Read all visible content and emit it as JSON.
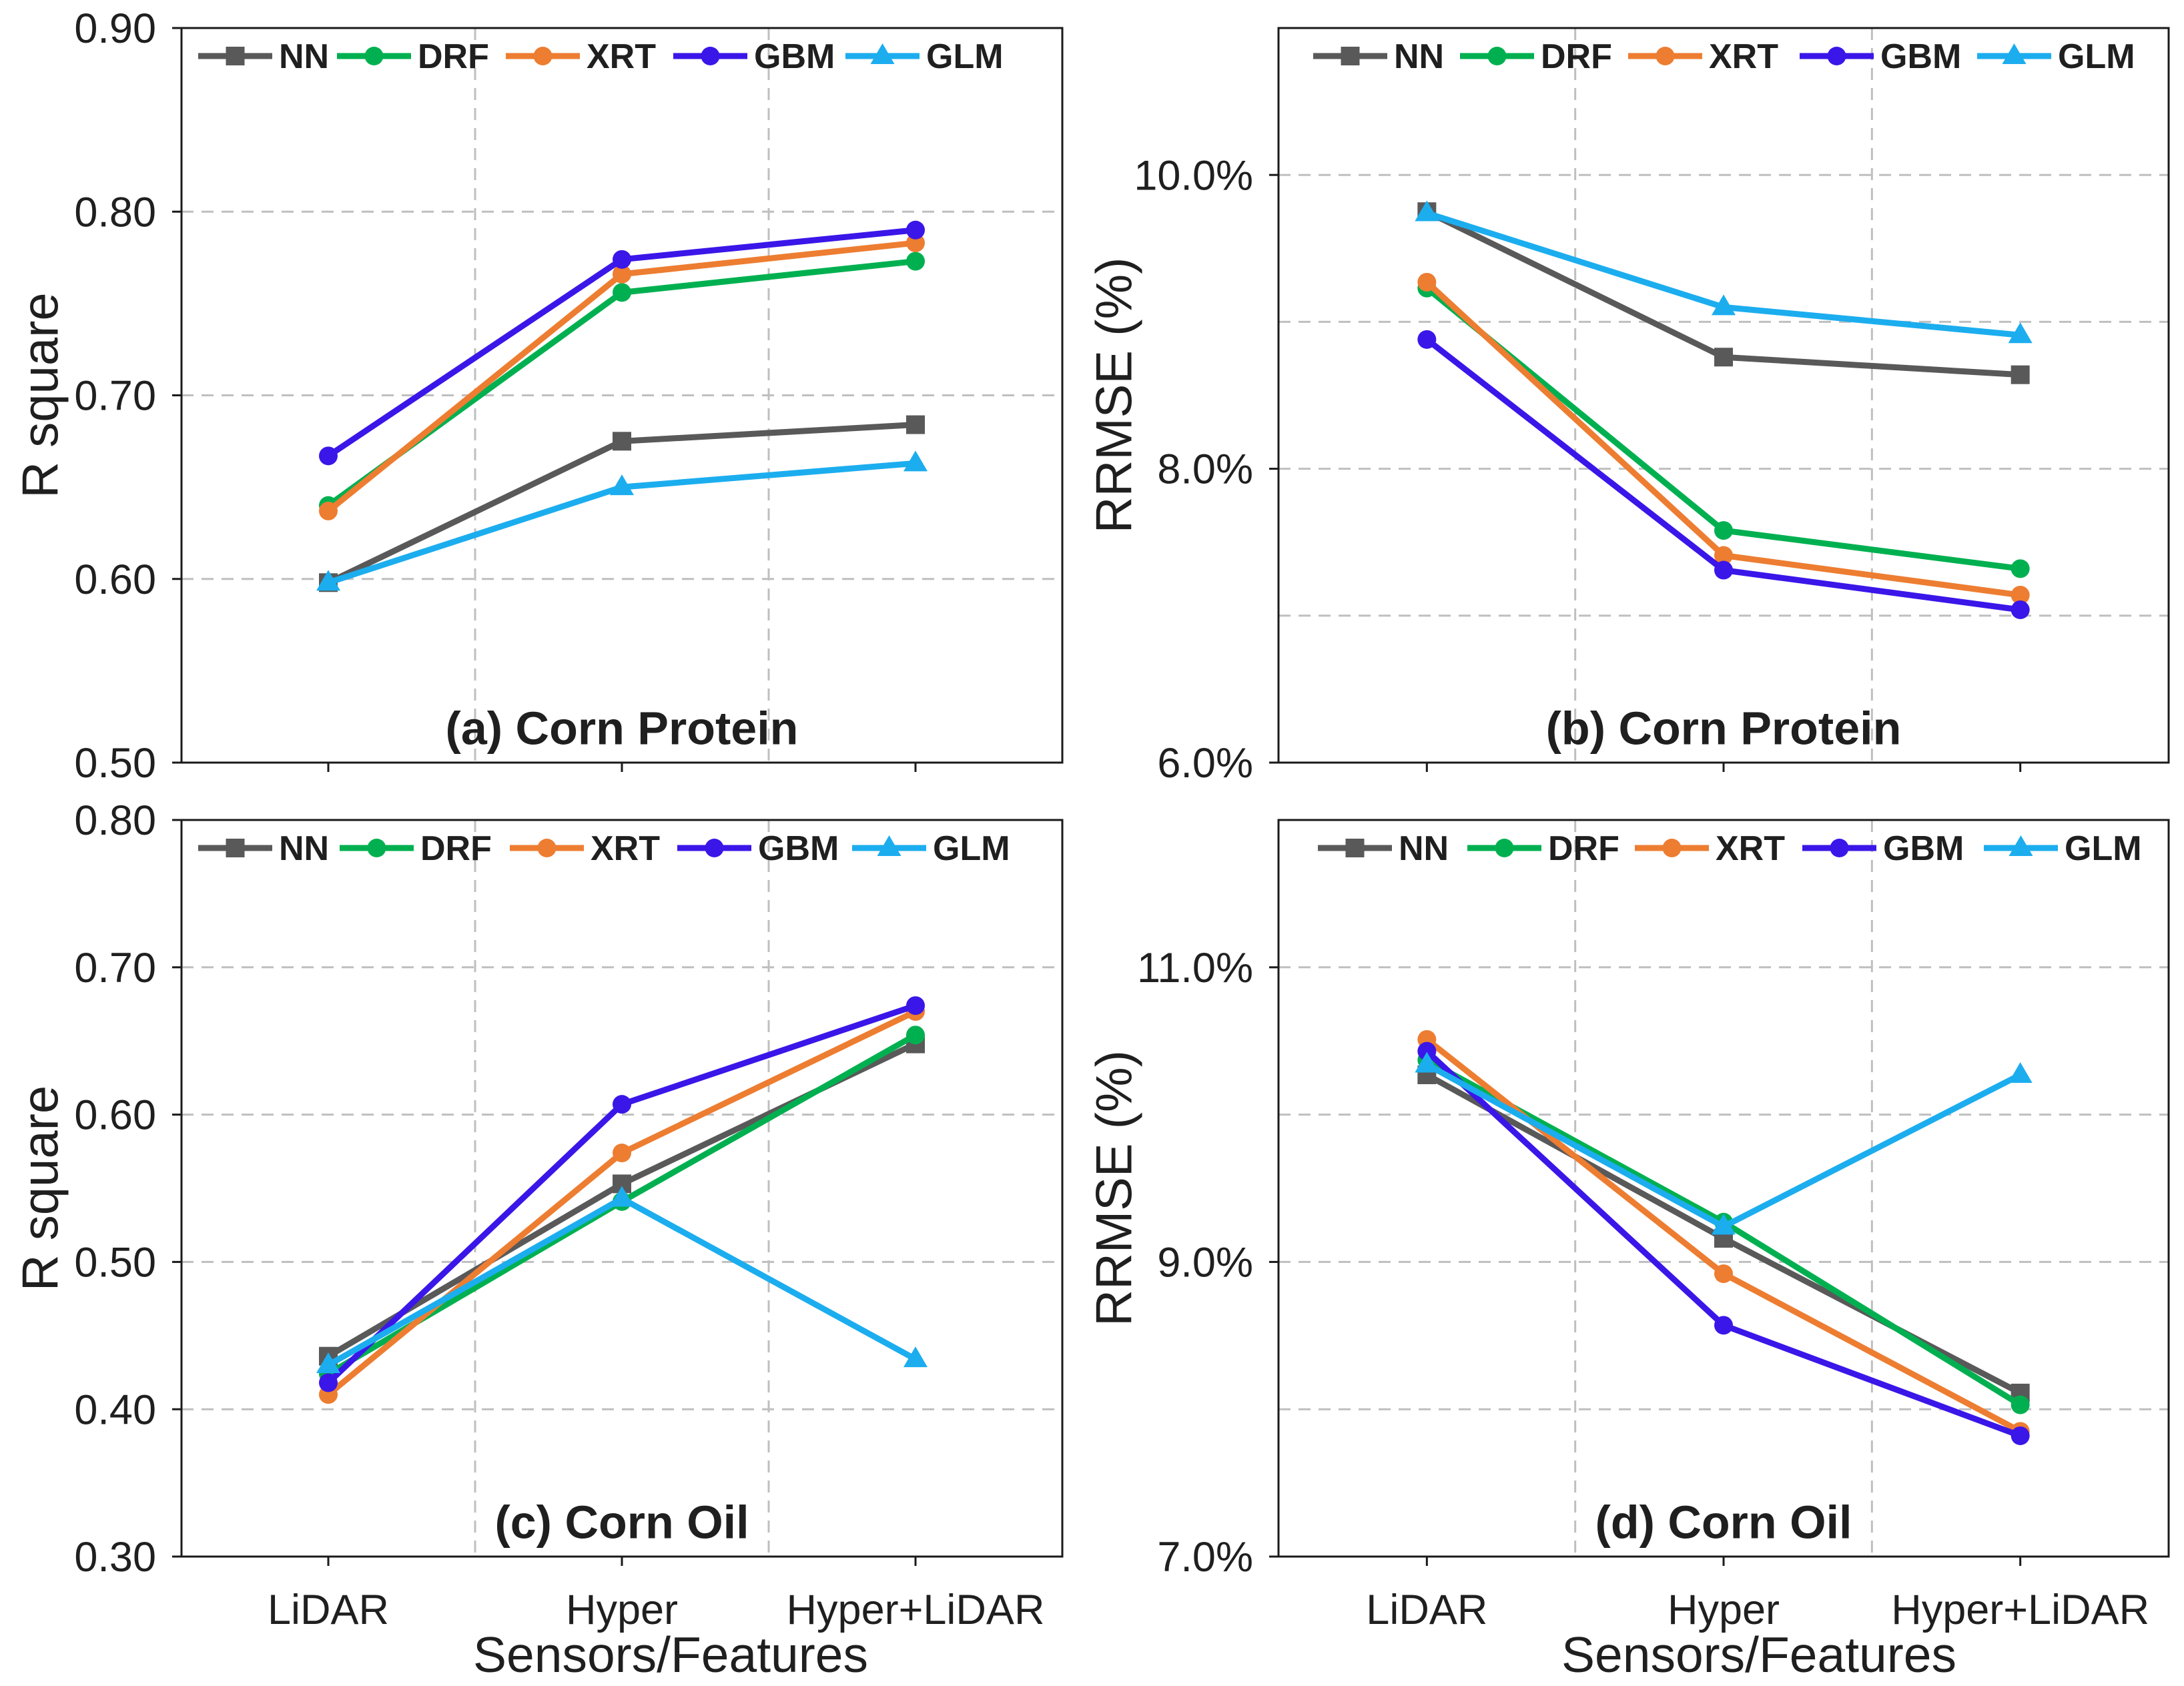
{
  "chart_data": {
    "type": "line",
    "categories": [
      "LiDAR",
      "Hyper",
      "Hyper+LiDAR"
    ],
    "xlabel": "Sensors/Features",
    "charts": [
      {
        "type": "line",
        "title": "(a) Corn Protein",
        "ylabel": "R square",
        "ylim": [
          0.5,
          0.9
        ],
        "yticks": [
          0.5,
          0.6,
          0.7,
          0.8,
          0.9
        ],
        "ytick_labels": [
          "0.50",
          "0.60",
          "0.70",
          "0.80",
          "0.90"
        ],
        "ygrid": [
          0.6,
          0.7,
          0.8
        ],
        "grid": true,
        "series": [
          {
            "name": "NN",
            "color": "#595959",
            "marker": "square",
            "values": [
              0.598,
              0.675,
              0.684
            ]
          },
          {
            "name": "DRF",
            "color": "#00B050",
            "marker": "circle",
            "values": [
              0.64,
              0.756,
              0.773
            ]
          },
          {
            "name": "XRT",
            "color": "#ED7D31",
            "marker": "circle",
            "values": [
              0.637,
              0.766,
              0.783
            ]
          },
          {
            "name": "GBM",
            "color": "#3B16E8",
            "marker": "circle",
            "values": [
              0.667,
              0.774,
              0.79
            ]
          },
          {
            "name": "GLM",
            "color": "#1CADEF",
            "marker": "triangle",
            "values": [
              0.598,
              0.65,
              0.663
            ]
          }
        ]
      },
      {
        "type": "line",
        "title": "(b) Corn Protein",
        "ylabel": "RRMSE (%)",
        "ylim": [
          6.0,
          11.0
        ],
        "yticks": [
          6.0,
          8.0,
          10.0
        ],
        "ytick_labels": [
          "6.0%",
          "8.0%",
          "10.0%"
        ],
        "ygrid": [
          7.0,
          8.0,
          9.0,
          10.0
        ],
        "grid": true,
        "series": [
          {
            "name": "NN",
            "color": "#595959",
            "marker": "square",
            "values": [
              9.75,
              8.76,
              8.64
            ]
          },
          {
            "name": "DRF",
            "color": "#00B050",
            "marker": "circle",
            "values": [
              9.23,
              7.58,
              7.32
            ]
          },
          {
            "name": "XRT",
            "color": "#ED7D31",
            "marker": "circle",
            "values": [
              9.27,
              7.41,
              7.14
            ]
          },
          {
            "name": "GBM",
            "color": "#3B16E8",
            "marker": "circle",
            "values": [
              8.88,
              7.31,
              7.04
            ]
          },
          {
            "name": "GLM",
            "color": "#1CADEF",
            "marker": "triangle",
            "values": [
              9.74,
              9.1,
              8.91
            ]
          }
        ]
      },
      {
        "type": "line",
        "title": "(c) Corn Oil",
        "ylabel": "R square",
        "ylim": [
          0.3,
          0.8
        ],
        "yticks": [
          0.3,
          0.4,
          0.5,
          0.6,
          0.7,
          0.8
        ],
        "ytick_labels": [
          "0.30",
          "0.40",
          "0.50",
          "0.60",
          "0.70",
          "0.80"
        ],
        "ygrid": [
          0.4,
          0.5,
          0.6,
          0.7
        ],
        "grid": true,
        "series": [
          {
            "name": "NN",
            "color": "#595959",
            "marker": "square",
            "values": [
              0.436,
              0.553,
              0.648
            ]
          },
          {
            "name": "DRF",
            "color": "#00B050",
            "marker": "circle",
            "values": [
              0.424,
              0.541,
              0.654
            ]
          },
          {
            "name": "XRT",
            "color": "#ED7D31",
            "marker": "circle",
            "values": [
              0.41,
              0.574,
              0.67
            ]
          },
          {
            "name": "GBM",
            "color": "#3B16E8",
            "marker": "circle",
            "values": [
              0.418,
              0.607,
              0.674
            ]
          },
          {
            "name": "GLM",
            "color": "#1CADEF",
            "marker": "triangle",
            "values": [
              0.43,
              0.543,
              0.434
            ]
          }
        ]
      },
      {
        "type": "line",
        "title": "(d) Corn Oil",
        "ylabel": "RRMSE (%)",
        "ylim": [
          7.0,
          12.0
        ],
        "yticks": [
          7.0,
          9.0,
          11.0
        ],
        "ytick_labels": [
          "7.0%",
          "9.0%",
          "11.0%"
        ],
        "ygrid": [
          8.0,
          9.0,
          10.0,
          11.0
        ],
        "grid": true,
        "series": [
          {
            "name": "NN",
            "color": "#595959",
            "marker": "square",
            "values": [
              10.27,
              9.16,
              8.11
            ]
          },
          {
            "name": "DRF",
            "color": "#00B050",
            "marker": "circle",
            "values": [
              10.37,
              9.27,
              8.03
            ]
          },
          {
            "name": "XRT",
            "color": "#ED7D31",
            "marker": "circle",
            "values": [
              10.51,
              8.92,
              7.85
            ]
          },
          {
            "name": "GBM",
            "color": "#3B16E8",
            "marker": "circle",
            "values": [
              10.43,
              8.57,
              7.82
            ]
          },
          {
            "name": "GLM",
            "color": "#1CADEF",
            "marker": "triangle",
            "values": [
              10.34,
              9.24,
              10.27
            ]
          }
        ]
      }
    ]
  }
}
